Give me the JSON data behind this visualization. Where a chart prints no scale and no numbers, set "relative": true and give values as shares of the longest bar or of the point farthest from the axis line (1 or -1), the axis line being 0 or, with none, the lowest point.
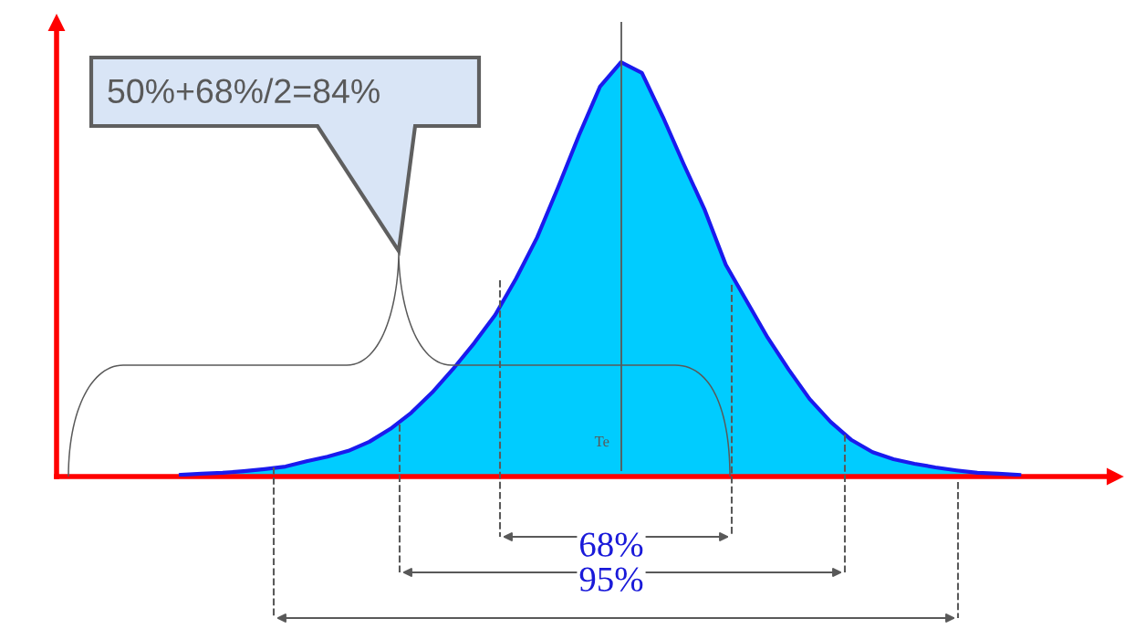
{
  "chart_data": {
    "type": "area",
    "relative": true,
    "categories": [
      null,
      null,
      null,
      null,
      null,
      null,
      null,
      null,
      null,
      null,
      null,
      null,
      null,
      null,
      null,
      null,
      null,
      null,
      null,
      null,
      null,
      null,
      null,
      null,
      null,
      null,
      null,
      null,
      null,
      null,
      null,
      null,
      null,
      null,
      null,
      null,
      null,
      null,
      null,
      null,
      null
    ],
    "series": [
      {
        "color": "#00ccff",
        "values": [
          0.004,
          0.007,
          0.009,
          0.013,
          0.018,
          0.024,
          0.037,
          0.048,
          0.062,
          0.084,
          0.115,
          0.154,
          0.203,
          0.26,
          0.322,
          0.39,
          0.478,
          0.577,
          0.698,
          0.824,
          0.941,
          1,
          0.974,
          0.868,
          0.753,
          0.643,
          0.511,
          0.423,
          0.335,
          0.258,
          0.187,
          0.132,
          0.088,
          0.059,
          0.042,
          0.031,
          0.022,
          0.015,
          0.009,
          0.007,
          0.004
        ]
      }
    ],
    "annotations": [
      "50%+68%/2=84%",
      "Te",
      "68%",
      "95%"
    ],
    "grid": false,
    "legend": false
  }
}
